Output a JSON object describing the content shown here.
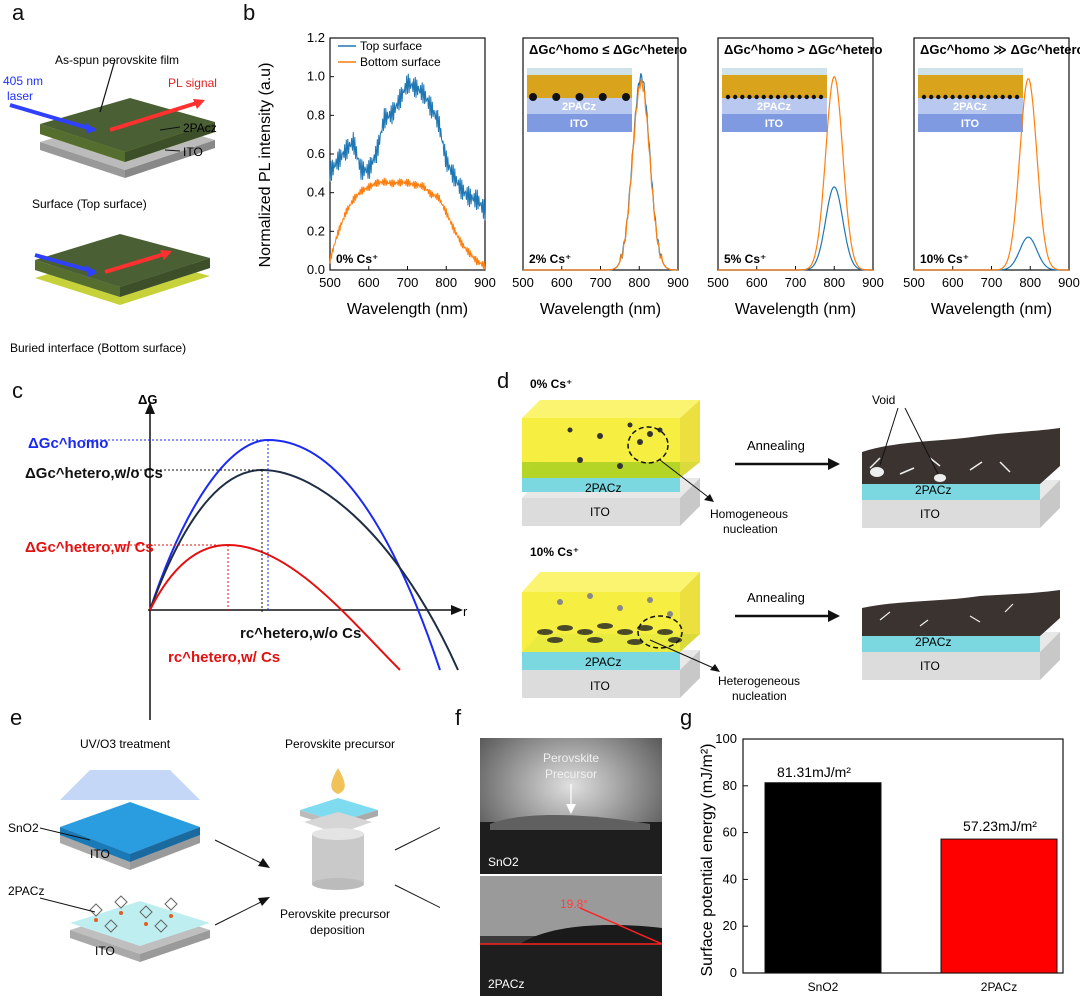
{
  "panels": {
    "a": {
      "label": "a",
      "film_label": "As-spun perovskite film",
      "laser_label_line1": "405 nm",
      "laser_label_line2": "laser",
      "pl_label": "PL signal",
      "htl_label": "2PAcz",
      "ito_label": "ITO",
      "top_caption": "Surface (Top surface)",
      "bottom_caption": "Buried interface (Bottom surface)"
    },
    "b": {
      "label": "b",
      "ylabel": "Normalized PL intensity (a.u)",
      "xlabel": "Wavelength (nm)",
      "legend_top": "Top surface",
      "legend_bottom": "Bottom surface",
      "sub_titles": [
        "",
        "ΔGc^homo ≤ ΔGc^hetero",
        "ΔGc^homo > ΔGc^hetero",
        "ΔGc^homo ≫ ΔGc^hetero"
      ],
      "cs_labels": [
        "0% Cs⁺",
        "2% Cs⁺",
        "5% Cs⁺",
        "10% Cs⁺"
      ],
      "stack_htl": "2PACz",
      "stack_ito": "ITO"
    },
    "c": {
      "label": "c",
      "yaxis": "ΔG",
      "xaxis": "r",
      "homo_label": "ΔGc^homo",
      "hetero_woCs_label": "ΔGc^hetero,w/o Cs",
      "hetero_wCs_label": "ΔGc^hetero,w/ Cs",
      "rc_woCs_label": "rc^hetero,w/o Cs",
      "rc_wCs_label": "rc^hetero,w/ Cs"
    },
    "d": {
      "label": "d",
      "row1_cs": "0% Cs⁺",
      "row2_cs": "10% Cs⁺",
      "annealing": "Annealing",
      "void": "Void",
      "htl": "2PACz",
      "ito": "ITO",
      "homo_nuc_line1": "Homogeneous",
      "homo_nuc_line2": "nucleation",
      "hetero_nuc_line1": "Heterogeneous",
      "hetero_nuc_line2": "nucleation"
    },
    "e": {
      "label": "e",
      "uv_title": "UV/O3 treatment",
      "sno2": "SnO2",
      "ito": "ITO",
      "htl": "2PACz",
      "precursor_title": "Perovskite precursor",
      "deposition_line1": "Perovskite precursor",
      "deposition_line2": "deposition"
    },
    "f": {
      "label": "f",
      "precursor_line1": "Perovskite",
      "precursor_line2": "Precursor",
      "top_substrate": "SnO2",
      "angle": "19.8°",
      "bottom_substrate": "2PACz"
    },
    "g": {
      "label": "g",
      "ylabel": "Surface potential energy (mJ/m²)",
      "bar1_value_label": "81.31mJ/m²",
      "bar2_value_label": "57.23mJ/m²"
    }
  },
  "chart_data": [
    {
      "type": "line",
      "panel": "b-1",
      "xlabel": "Wavelength (nm)",
      "ylabel": "Normalized PL intensity (a.u)",
      "xlim": [
        500,
        900
      ],
      "ylim": [
        0,
        1.2
      ],
      "x": [
        500,
        520,
        540,
        560,
        580,
        600,
        620,
        640,
        660,
        680,
        700,
        720,
        740,
        760,
        780,
        800,
        820,
        840,
        860,
        880,
        900
      ],
      "series": [
        {
          "name": "Top surface",
          "color": "#1f77b4",
          "values": [
            0.5,
            0.54,
            0.58,
            0.63,
            0.5,
            0.52,
            0.63,
            0.82,
            0.84,
            0.9,
            0.96,
            0.92,
            0.88,
            0.81,
            0.75,
            0.57,
            0.51,
            0.45,
            0.41,
            0.38,
            0.3
          ]
        },
        {
          "name": "Bottom surface",
          "color": "#ff7f0e",
          "values": [
            0.05,
            0.18,
            0.28,
            0.35,
            0.4,
            0.43,
            0.46,
            0.47,
            0.46,
            0.46,
            0.45,
            0.43,
            0.42,
            0.38,
            0.37,
            0.3,
            0.22,
            0.15,
            0.1,
            0.05,
            0.02
          ]
        }
      ]
    },
    {
      "type": "line",
      "panel": "b-2",
      "xlim": [
        500,
        900
      ],
      "ylim": [
        0,
        1.2
      ],
      "series": [
        {
          "name": "Top surface",
          "color": "#1f77b4",
          "peak": 805,
          "amplitude": 1.0,
          "width": 22
        },
        {
          "name": "Bottom surface",
          "color": "#ff7f0e",
          "peak": 805,
          "amplitude": 0.97,
          "width": 22
        }
      ]
    },
    {
      "type": "line",
      "panel": "b-3",
      "xlim": [
        500,
        900
      ],
      "ylim": [
        0,
        1.2
      ],
      "series": [
        {
          "name": "Top surface",
          "color": "#1f77b4",
          "peak": 800,
          "amplitude": 0.43,
          "width": 22
        },
        {
          "name": "Bottom surface",
          "color": "#ff7f0e",
          "peak": 800,
          "amplitude": 1.0,
          "width": 22
        }
      ]
    },
    {
      "type": "line",
      "panel": "b-4",
      "xlim": [
        500,
        900
      ],
      "ylim": [
        0,
        1.2
      ],
      "series": [
        {
          "name": "Top surface",
          "color": "#1f77b4",
          "peak": 795,
          "amplitude": 0.17,
          "width": 22
        },
        {
          "name": "Bottom surface",
          "color": "#ff7f0e",
          "peak": 795,
          "amplitude": 0.99,
          "width": 22
        }
      ]
    },
    {
      "type": "bar",
      "panel": "g",
      "categories": [
        "SnO2",
        "2PACz"
      ],
      "values": [
        81.31,
        57.23
      ],
      "colors": [
        "#000000",
        "#ff0000"
      ],
      "ylabel": "Surface potential energy (mJ/m²)",
      "ylim": [
        0,
        100
      ],
      "yticks": [
        0,
        20,
        40,
        60,
        80,
        100
      ]
    }
  ]
}
